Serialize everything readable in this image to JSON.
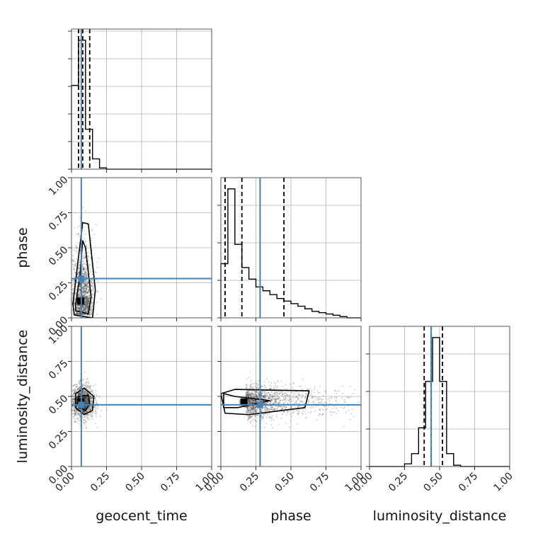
{
  "colors": {
    "truth": "#4682b4",
    "histogram": "#000000",
    "contour": "#000000",
    "grid": "#b0b0b0",
    "points": "#000000"
  },
  "chart_data": {
    "type": "corner",
    "parameters": [
      "geocent_time",
      "phase",
      "luminosity_distance"
    ],
    "axis_range": [
      0,
      1
    ],
    "ticks": [
      0,
      0.25,
      0.5,
      0.75,
      1
    ],
    "tick_labels": [
      "0.00",
      "0.25",
      "0.50",
      "0.75",
      "1.00"
    ],
    "grid": true,
    "truths": {
      "geocent_time": 0.07,
      "phase": 0.28,
      "luminosity_distance": 0.44
    },
    "marginals": [
      {
        "parameter": "geocent_time",
        "bin_edges": [
          0.0,
          0.05,
          0.1,
          0.15,
          0.2,
          0.25,
          0.3,
          0.35,
          0.4,
          0.45,
          0.5,
          0.55,
          0.6,
          0.65,
          0.7,
          0.75,
          0.8,
          0.85,
          0.9,
          0.95,
          1.0
        ],
        "counts": [
          0.65,
          1.0,
          0.31,
          0.08,
          0.01,
          0,
          0,
          0,
          0,
          0,
          0,
          0,
          0,
          0,
          0,
          0,
          0,
          0,
          0,
          0
        ],
        "quantiles": [
          0.05,
          0.08,
          0.13
        ]
      },
      {
        "parameter": "phase",
        "bin_edges": [
          0.0,
          0.05,
          0.1,
          0.15,
          0.2,
          0.25,
          0.3,
          0.35,
          0.4,
          0.45,
          0.5,
          0.55,
          0.6,
          0.65,
          0.7,
          0.75,
          0.8,
          0.85,
          0.9,
          0.95,
          1.0
        ],
        "counts": [
          0.42,
          1.0,
          0.57,
          0.39,
          0.3,
          0.24,
          0.21,
          0.18,
          0.15,
          0.13,
          0.11,
          0.09,
          0.07,
          0.05,
          0.04,
          0.03,
          0.02,
          0.01,
          0,
          0
        ],
        "quantiles": [
          0.03,
          0.15,
          0.45
        ]
      },
      {
        "parameter": "luminosity_distance",
        "bin_edges": [
          0.0,
          0.05,
          0.1,
          0.15,
          0.2,
          0.25,
          0.3,
          0.35,
          0.4,
          0.45,
          0.5,
          0.55,
          0.6,
          0.65,
          0.7,
          0.75,
          0.8,
          0.85,
          0.9,
          0.95,
          1.0
        ],
        "counts": [
          0,
          0,
          0,
          0,
          0,
          0.02,
          0.1,
          0.3,
          0.66,
          1.0,
          0.66,
          0.1,
          0.01,
          0,
          0,
          0,
          0,
          0,
          0,
          0
        ],
        "quantiles": [
          0.39,
          0.44,
          0.52
        ]
      }
    ],
    "joint": [
      {
        "x": "geocent_time",
        "y": "phase",
        "center": [
          0.08,
          0.12
        ],
        "spread": [
          0.04,
          0.22
        ],
        "contours": [
          [
            [
              0.03,
              0.05
            ],
            [
              0.12,
              0.03
            ],
            [
              0.14,
              0.15
            ],
            [
              0.1,
              0.5
            ],
            [
              0.08,
              0.55
            ],
            [
              0.06,
              0.3
            ],
            [
              0.03,
              0.1
            ]
          ],
          [
            [
              0.02,
              0.02
            ],
            [
              0.15,
              0.0
            ],
            [
              0.17,
              0.2
            ],
            [
              0.12,
              0.67
            ],
            [
              0.08,
              0.68
            ],
            [
              0.04,
              0.35
            ],
            [
              0.01,
              0.1
            ]
          ]
        ]
      },
      {
        "x": "geocent_time",
        "y": "luminosity_distance",
        "center": [
          0.08,
          0.46
        ],
        "spread": [
          0.04,
          0.06
        ],
        "contours": [
          [
            [
              0.05,
              0.5
            ],
            [
              0.12,
              0.51
            ],
            [
              0.13,
              0.45
            ],
            [
              0.1,
              0.4
            ],
            [
              0.05,
              0.42
            ]
          ],
          [
            [
              0.03,
              0.52
            ],
            [
              0.09,
              0.56
            ],
            [
              0.16,
              0.5
            ],
            [
              0.15,
              0.4
            ],
            [
              0.09,
              0.37
            ],
            [
              0.03,
              0.42
            ]
          ]
        ]
      },
      {
        "x": "phase",
        "y": "luminosity_distance",
        "center": [
          0.18,
          0.46
        ],
        "spread": [
          0.22,
          0.06
        ],
        "contours": [
          [
            [
              0.02,
              0.52
            ],
            [
              0.1,
              0.5
            ],
            [
              0.35,
              0.47
            ],
            [
              0.12,
              0.42
            ],
            [
              0.02,
              0.42
            ]
          ],
          [
            [
              0.0,
              0.52
            ],
            [
              0.1,
              0.55
            ],
            [
              0.63,
              0.54
            ],
            [
              0.6,
              0.42
            ],
            [
              0.2,
              0.37
            ],
            [
              0.03,
              0.38
            ]
          ]
        ]
      }
    ]
  }
}
